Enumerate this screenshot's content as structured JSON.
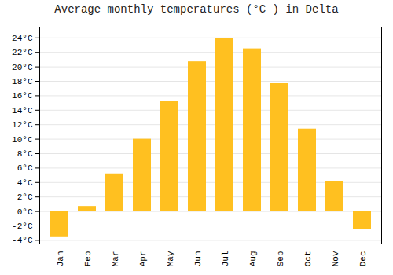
{
  "chart_data": {
    "type": "bar",
    "title": "Average monthly temperatures (°C ) in Delta",
    "categories": [
      "Jan",
      "Feb",
      "Mar",
      "Apr",
      "May",
      "Jun",
      "Jul",
      "Aug",
      "Sep",
      "Oct",
      "Nov",
      "Dec"
    ],
    "values": [
      -3.5,
      0.7,
      5.2,
      10.0,
      15.2,
      20.7,
      23.9,
      22.5,
      17.7,
      11.4,
      4.1,
      -2.5
    ],
    "color": "#FFC020",
    "ylim": [
      -4.5,
      25.5
    ],
    "yticks": [
      {
        "value": -4,
        "label": "-4°C"
      },
      {
        "value": -2,
        "label": "-2°C"
      },
      {
        "value": 0,
        "label": "0°C"
      },
      {
        "value": 2,
        "label": "2°C"
      },
      {
        "value": 4,
        "label": "4°C"
      },
      {
        "value": 6,
        "label": "6°C"
      },
      {
        "value": 8,
        "label": "8°C"
      },
      {
        "value": 10,
        "label": "10°C"
      },
      {
        "value": 12,
        "label": "12°C"
      },
      {
        "value": 14,
        "label": "14°C"
      },
      {
        "value": 16,
        "label": "16°C"
      },
      {
        "value": 18,
        "label": "18°C"
      },
      {
        "value": 20,
        "label": "20°C"
      },
      {
        "value": 22,
        "label": "22°C"
      },
      {
        "value": 24,
        "label": "24°C"
      }
    ],
    "grid": true
  }
}
